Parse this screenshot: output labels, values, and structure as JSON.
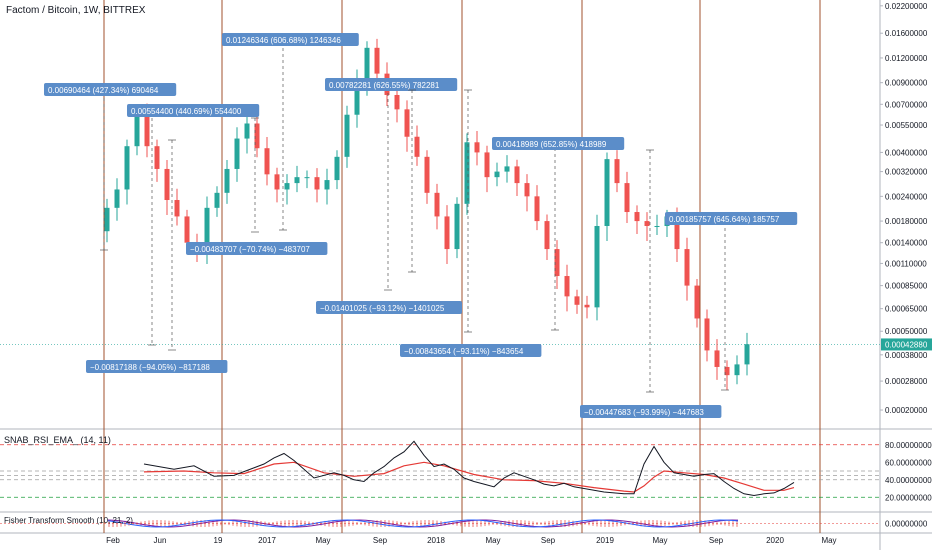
{
  "title": "Factom / Bitcoin, 1W, BITTREX",
  "chart_data": {
    "type": "candlestick",
    "symbol": "Factom / Bitcoin",
    "interval": "1W",
    "exchange": "BITTREX",
    "price_scale": "log",
    "price_axis_ticks": [
      "0.02200000",
      "0.01600000",
      "0.01200000",
      "0.00900000",
      "0.00700000",
      "0.00550000",
      "0.00400000",
      "0.00320000",
      "0.00240000",
      "0.00180000",
      "0.00140000",
      "0.00110000",
      "0.00085000",
      "0.00065000",
      "0.00050000",
      "0.00038000",
      "0.00028000",
      "0.00020000"
    ],
    "last_price": "0.00042880",
    "time_axis_ticks": [
      "Feb",
      "Jun",
      "19",
      "2017",
      "May",
      "Sep",
      "2018",
      "May",
      "Sep",
      "2019",
      "May",
      "Sep",
      "2020",
      "May"
    ],
    "close_path": [
      [
        0,
        0.0016
      ],
      [
        1,
        0.0021
      ],
      [
        2,
        0.0026
      ],
      [
        3,
        0.0043
      ],
      [
        4,
        0.0062
      ],
      [
        5,
        0.0043
      ],
      [
        6,
        0.0033
      ],
      [
        7,
        0.0023
      ],
      [
        8,
        0.0019
      ],
      [
        9,
        0.0014
      ],
      [
        10,
        0.0013
      ],
      [
        11,
        0.0021
      ],
      [
        12,
        0.0025
      ],
      [
        13,
        0.0033
      ],
      [
        14,
        0.0047
      ],
      [
        15,
        0.0056
      ],
      [
        16,
        0.0042
      ],
      [
        17,
        0.0031
      ],
      [
        18,
        0.0026
      ],
      [
        19,
        0.0028
      ],
      [
        20,
        0.003
      ],
      [
        21,
        0.003
      ],
      [
        22,
        0.0026
      ],
      [
        23,
        0.0029
      ],
      [
        24,
        0.0038
      ],
      [
        25,
        0.0062
      ],
      [
        26,
        0.0092
      ],
      [
        27,
        0.0135
      ],
      [
        28,
        0.01
      ],
      [
        29,
        0.0078
      ],
      [
        30,
        0.0066
      ],
      [
        31,
        0.0048
      ],
      [
        32,
        0.0038
      ],
      [
        33,
        0.0025
      ],
      [
        34,
        0.0019
      ],
      [
        35,
        0.0013
      ],
      [
        36,
        0.0022
      ],
      [
        37,
        0.0045
      ],
      [
        38,
        0.004
      ],
      [
        39,
        0.003
      ],
      [
        40,
        0.0032
      ],
      [
        41,
        0.0034
      ],
      [
        42,
        0.0028
      ],
      [
        43,
        0.0024
      ],
      [
        44,
        0.0018
      ],
      [
        45,
        0.0013
      ],
      [
        46,
        0.00095
      ],
      [
        47,
        0.00075
      ],
      [
        48,
        0.00068
      ],
      [
        49,
        0.00066
      ],
      [
        50,
        0.0017
      ],
      [
        51,
        0.0037
      ],
      [
        52,
        0.0028
      ],
      [
        53,
        0.002
      ],
      [
        54,
        0.0018
      ],
      [
        55,
        0.0017
      ],
      [
        56,
        0.0017
      ],
      [
        57,
        0.0019
      ],
      [
        58,
        0.0013
      ],
      [
        59,
        0.00085
      ],
      [
        60,
        0.00058
      ],
      [
        61,
        0.0004
      ],
      [
        62,
        0.00033
      ],
      [
        63,
        0.0003
      ],
      [
        64,
        0.00034
      ],
      [
        65,
        0.00043
      ]
    ],
    "measurements": [
      {
        "label": "0.00690464 (427.34%) 690464"
      },
      {
        "label": "0.00554400 (440.69%) 554400"
      },
      {
        "label": "0.01246346 (606.68%) 1246346"
      },
      {
        "label": "0.00782281 (626.55%) 782281"
      },
      {
        "label": "0.00418989 (652.85%) 418989"
      },
      {
        "label": "0.00185757 (645.64%) 185757"
      },
      {
        "label": "−0.00483707 (−70.74%) −483707"
      },
      {
        "label": "−0.01401025 (−93.12%) −1401025"
      },
      {
        "label": "−0.00817188 (−94.05%) −817188"
      },
      {
        "label": "−0.00843654 (−93.11%) −843654"
      },
      {
        "label": "−0.00447683 (−93.99%) −447683"
      }
    ],
    "indicators": [
      {
        "name": "SNAB_RSI_EMA_ (14, 11)",
        "axis_ticks": [
          "80.00000000",
          "60.00000000",
          "40.00000000",
          "20.00000000"
        ],
        "levels": [
          80,
          50,
          45,
          40,
          20
        ],
        "rsi": [
          [
            0,
            58
          ],
          [
            3,
            52
          ],
          [
            5,
            56
          ],
          [
            7,
            44
          ],
          [
            9,
            45
          ],
          [
            12,
            58
          ],
          [
            13,
            65
          ],
          [
            14,
            70
          ],
          [
            15,
            62
          ],
          [
            17,
            42
          ],
          [
            19,
            48
          ],
          [
            20,
            45
          ],
          [
            21,
            40
          ],
          [
            22,
            38
          ],
          [
            23,
            48
          ],
          [
            24,
            55
          ],
          [
            25,
            65
          ],
          [
            26,
            72
          ],
          [
            27,
            84
          ],
          [
            28,
            68
          ],
          [
            29,
            55
          ],
          [
            30,
            58
          ],
          [
            31,
            52
          ],
          [
            32,
            42
          ],
          [
            33,
            38
          ],
          [
            34,
            35
          ],
          [
            35,
            32
          ],
          [
            36,
            42
          ],
          [
            37,
            48
          ],
          [
            38,
            44
          ],
          [
            39,
            40
          ],
          [
            40,
            35
          ],
          [
            41,
            33
          ],
          [
            42,
            36
          ],
          [
            43,
            32
          ],
          [
            44,
            30
          ],
          [
            45,
            28
          ],
          [
            46,
            26
          ],
          [
            47,
            25
          ],
          [
            48,
            24
          ],
          [
            49,
            24
          ],
          [
            50,
            58
          ],
          [
            51,
            78
          ],
          [
            52,
            60
          ],
          [
            53,
            48
          ],
          [
            54,
            46
          ],
          [
            55,
            44
          ],
          [
            56,
            46
          ],
          [
            57,
            47
          ],
          [
            58,
            38
          ],
          [
            59,
            30
          ],
          [
            60,
            24
          ],
          [
            61,
            22
          ],
          [
            62,
            24
          ],
          [
            63,
            25
          ],
          [
            64,
            30
          ],
          [
            65,
            37
          ]
        ],
        "ema": [
          [
            0,
            49
          ],
          [
            4,
            50
          ],
          [
            7,
            48
          ],
          [
            10,
            47
          ],
          [
            13,
            58
          ],
          [
            15,
            60
          ],
          [
            18,
            48
          ],
          [
            21,
            44
          ],
          [
            24,
            47
          ],
          [
            26,
            56
          ],
          [
            28,
            60
          ],
          [
            30,
            56
          ],
          [
            33,
            46
          ],
          [
            36,
            40
          ],
          [
            39,
            39
          ],
          [
            42,
            36
          ],
          [
            45,
            31
          ],
          [
            48,
            27
          ],
          [
            49,
            26
          ],
          [
            50,
            33
          ],
          [
            51,
            43
          ],
          [
            52,
            50
          ],
          [
            54,
            48
          ],
          [
            56,
            46
          ],
          [
            58,
            42
          ],
          [
            60,
            35
          ],
          [
            62,
            28
          ],
          [
            64,
            28
          ],
          [
            65,
            31
          ]
        ],
        "colors": {
          "rsi": "#131722",
          "ema": "#e53935",
          "level_ob": "#e53935",
          "level_os": "#1b9e3a",
          "level_mid": "#9e9e9e"
        }
      },
      {
        "name": "Fisher Transform Smooth (10, 21, 2)",
        "axis_ticks": [
          "0.00000000"
        ],
        "colors": {
          "fisher": "#2962ff",
          "signal": "#7b1fa2",
          "hist": "#e53935"
        }
      }
    ],
    "colors": {
      "up": "#26a69a",
      "down": "#ef5350",
      "vertical_markers": "#a0522d",
      "label_bg": "#5b8dc9",
      "price_line": "#26a69a"
    }
  }
}
